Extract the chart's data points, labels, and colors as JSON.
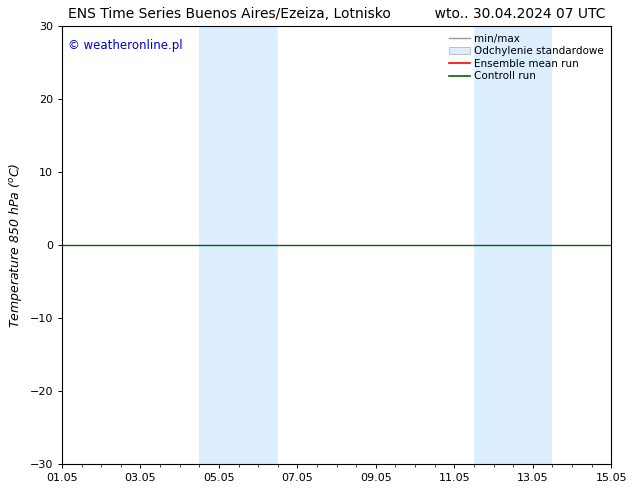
{
  "title_left": "ENS Time Series Buenos Aires/Ezeiza, Lotnisko",
  "title_right": "wto.. 30.04.2024 07 UTC",
  "ylabel": "Temperature 850 hPa (°C)",
  "watermark": "© weatheronline.pl",
  "watermark_color": "#0000cc",
  "ylim": [
    -30,
    30
  ],
  "yticks": [
    -30,
    -20,
    -10,
    0,
    10,
    20,
    30
  ],
  "xtick_labels": [
    "01.05",
    "03.05",
    "05.05",
    "07.05",
    "09.05",
    "11.05",
    "13.05",
    "15.05"
  ],
  "xtick_positions": [
    0,
    2,
    4,
    6,
    8,
    10,
    12,
    14
  ],
  "x_minor_ticks": [
    0,
    0.5,
    1,
    1.5,
    2,
    2.5,
    3,
    3.5,
    4,
    4.5,
    5,
    5.5,
    6,
    6.5,
    7,
    7.5,
    8,
    8.5,
    9,
    9.5,
    10,
    10.5,
    11,
    11.5,
    12,
    12.5,
    13,
    13.5,
    14
  ],
  "shaded_bands": [
    {
      "x_start": 3.5,
      "x_end": 5.5
    },
    {
      "x_start": 10.5,
      "x_end": 12.5
    }
  ],
  "shaded_color": "#ddeeff",
  "shaded_alpha": 1.0,
  "zero_line_color": "#006600",
  "zero_line_value": 0.0,
  "background_color": "#ffffff",
  "plot_bg_color": "#ffffff",
  "spine_color": "#000000",
  "legend_fontsize": 7.5,
  "title_fontsize": 10,
  "tick_fontsize": 8,
  "ylabel_fontsize": 9
}
